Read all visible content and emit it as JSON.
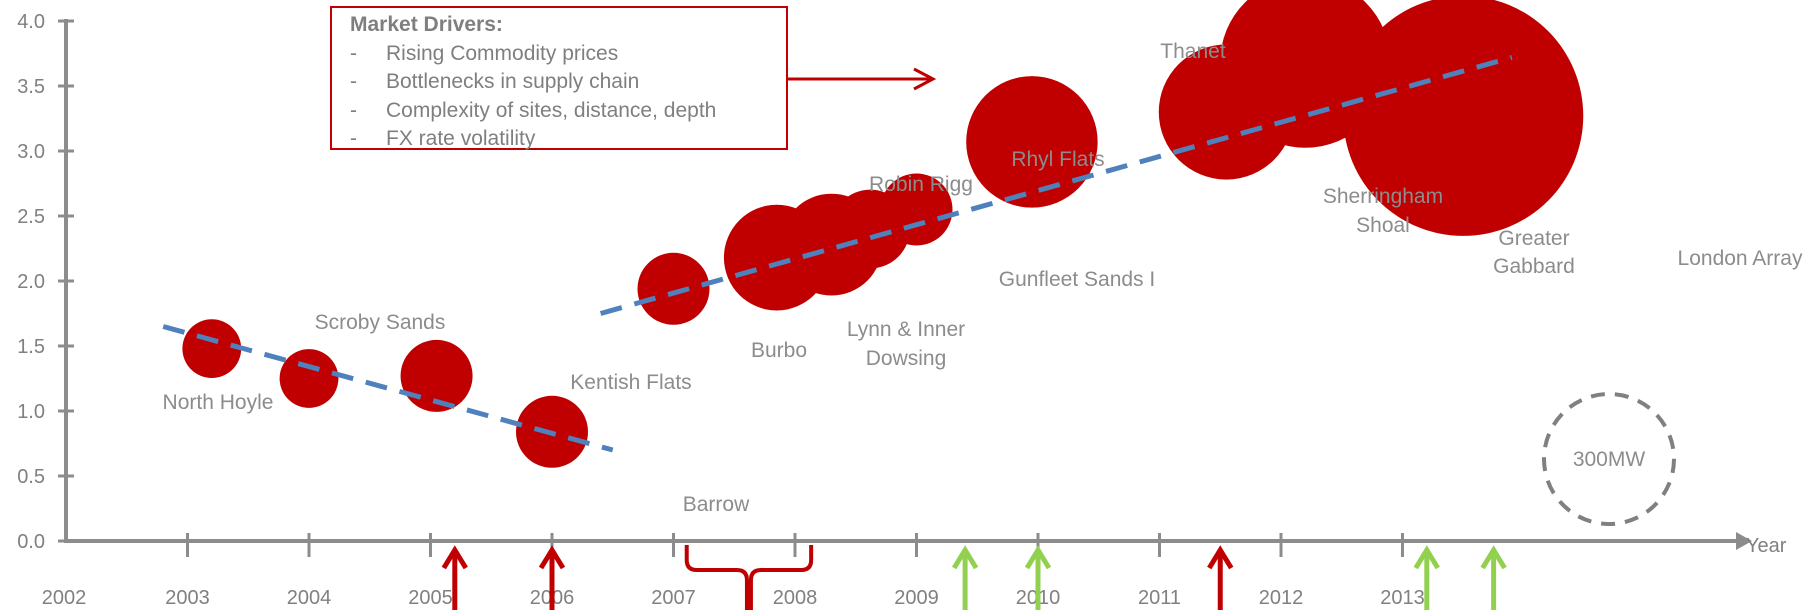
{
  "chart_data": {
    "type": "scatter",
    "variant": "bubble",
    "x_label": "Year",
    "x_ticks": [
      "2002",
      "2003",
      "2004",
      "2005",
      "2006",
      "2007",
      "2008",
      "2009",
      "2010",
      "2011",
      "2012",
      "2013"
    ],
    "x_range": [
      2002,
      2013.9
    ],
    "y_ticks": [
      "0.0",
      "0.5",
      "1.0",
      "1.5",
      "2.0",
      "2.5",
      "3.0",
      "3.5",
      "4.0"
    ],
    "y_range": [
      0,
      4.0
    ],
    "bubble_color": "#c00000",
    "points": [
      {
        "name": "North Hoyle",
        "x": 2003.2,
        "y": 1.48,
        "mw": 60
      },
      {
        "name": "Scroby Sands",
        "x": 2004.0,
        "y": 1.25,
        "mw": 60
      },
      {
        "name": "Kentish Flats",
        "x": 2005.05,
        "y": 1.27,
        "mw": 90
      },
      {
        "name": "Barrow",
        "x": 2006.0,
        "y": 0.84,
        "mw": 90
      },
      {
        "name": "Burbo",
        "x": 2007.0,
        "y": 1.94,
        "mw": 90
      },
      {
        "name": "Lynn & Inner Dowsing",
        "x": 2007.85,
        "y": 2.18,
        "mw": 194
      },
      {
        "name": "Robin Rigg",
        "x": 2008.3,
        "y": 2.28,
        "mw": 180
      },
      {
        "name": "Gunfleet Sands I",
        "x": 2008.62,
        "y": 2.4,
        "mw": 108
      },
      {
        "name": "Rhyl Flats",
        "x": 2009.0,
        "y": 2.55,
        "mw": 90
      },
      {
        "name": "Thanet",
        "x": 2009.95,
        "y": 3.07,
        "mw": 300
      },
      {
        "name": "Sherringham Shoal",
        "x": 2011.55,
        "y": 3.3,
        "mw": 317
      },
      {
        "name": "Greater Gabbard",
        "x": 2012.2,
        "y": 3.68,
        "mw": 504
      },
      {
        "name": "London Array",
        "x": 2013.5,
        "y": 3.27,
        "mw": 1000
      }
    ],
    "trend_lines": [
      {
        "x": [
          2002.8,
          2006.5
        ],
        "y": [
          1.65,
          0.7
        ]
      },
      {
        "x": [
          2006.4,
          2013.9
        ],
        "y": [
          1.75,
          3.72
        ]
      }
    ],
    "trend_color": "#4f81bd",
    "reference_bubble": {
      "label": "300MW",
      "mw": 300
    },
    "arrows": {
      "up_red_years": [
        2005.2,
        2006.0,
        2011.5
      ],
      "up_green_years": [
        2009.4,
        2010.0,
        2013.2,
        2013.75
      ],
      "red_color": "#c00000",
      "green_color": "#92d050"
    },
    "brace": {
      "from": 2007.15,
      "to": 2008.1
    }
  },
  "legend_box": {
    "title": "Market Drivers:",
    "items": [
      {
        "dash": "-",
        "text": "Rising Commodity prices"
      },
      {
        "dash": "-",
        "text": "Bottlenecks in supply chain"
      },
      {
        "dash": "-",
        "text": "Complexity of sites, distance, depth"
      },
      {
        "dash": "-",
        "text": "FX rate volatility"
      }
    ]
  }
}
